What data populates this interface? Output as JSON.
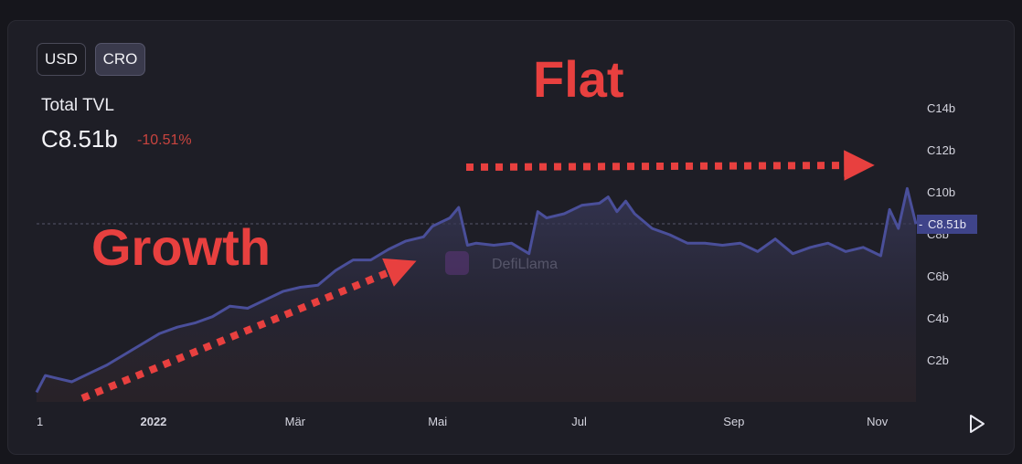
{
  "currency_toggle": {
    "usd_label": "USD",
    "cro_label": "CRO",
    "selected": "CRO"
  },
  "summary": {
    "label": "Total TVL",
    "value": "C8.51b",
    "change": "-10.51%"
  },
  "annotations": {
    "growth": "Growth",
    "flat": "Flat"
  },
  "watermark": "DefiLlama",
  "play_icon": "play-icon",
  "colors": {
    "line": "#4a4f9a",
    "annotation": "#e8403f",
    "change_negative": "#c8443f",
    "badge": "#3f448a"
  },
  "chart_data": {
    "type": "area",
    "title": "",
    "xlabel": "",
    "ylabel": "",
    "ylim": [
      0,
      15
    ],
    "y_unit": "billion CRO",
    "y_ticks": [
      2,
      4,
      6,
      8,
      10,
      12,
      14
    ],
    "y_tick_labels": [
      "C2b",
      "C4b",
      "C6b",
      "C8b",
      "C10b",
      "C12b",
      "C14b"
    ],
    "x_tick_positions": [
      0,
      0.133,
      0.294,
      0.456,
      0.617,
      0.793,
      0.956
    ],
    "x_tick_labels": [
      "1",
      "2022",
      "Mär",
      "Mai",
      "Jul",
      "Sep",
      "Nov"
    ],
    "current_value_label": "C8.51b",
    "current_value": 8.51,
    "series": [
      {
        "x": [
          0,
          0.01,
          0.02,
          0.04,
          0.06,
          0.08,
          0.1,
          0.12,
          0.14,
          0.16,
          0.18,
          0.2,
          0.22,
          0.24,
          0.26,
          0.28,
          0.3,
          0.32,
          0.34,
          0.36,
          0.38,
          0.4,
          0.42,
          0.44,
          0.45,
          0.46,
          0.47,
          0.48,
          0.49,
          0.5,
          0.52,
          0.54,
          0.56,
          0.57,
          0.58,
          0.6,
          0.62,
          0.64,
          0.65,
          0.66,
          0.67,
          0.68,
          0.7,
          0.72,
          0.74,
          0.76,
          0.78,
          0.8,
          0.82,
          0.84,
          0.86,
          0.88,
          0.9,
          0.92,
          0.94,
          0.95,
          0.96,
          0.97,
          0.98,
          0.99,
          1.0
        ],
        "y": [
          0.5,
          1.3,
          1.2,
          1.0,
          1.4,
          1.8,
          2.3,
          2.8,
          3.3,
          3.6,
          3.8,
          4.1,
          4.6,
          4.5,
          4.9,
          5.3,
          5.5,
          5.6,
          6.3,
          6.8,
          6.8,
          7.3,
          7.7,
          7.9,
          8.4,
          8.6,
          8.8,
          9.3,
          7.5,
          7.6,
          7.5,
          7.6,
          7.1,
          9.1,
          8.8,
          9.0,
          9.4,
          9.5,
          9.8,
          9.1,
          9.6,
          9.0,
          8.3,
          8.0,
          7.6,
          7.6,
          7.5,
          7.6,
          7.2,
          7.8,
          7.1,
          7.4,
          7.6,
          7.2,
          7.4,
          7.2,
          7.0,
          9.2,
          8.3,
          10.2,
          8.51
        ]
      }
    ]
  }
}
